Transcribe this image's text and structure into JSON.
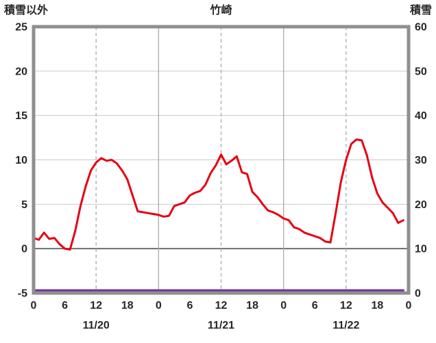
{
  "header": {
    "left_axis_title": "積雪以外",
    "station_title": "竹崎",
    "right_axis_title": "積雪"
  },
  "colors": {
    "temperature_line": "#e60012",
    "snow_line": "#7030a0",
    "frame": "#8f8f8f",
    "grid_light": "#c9c9c9",
    "grid_day": "#ababab",
    "zero_line": "#6e6e6e",
    "ink": "#262626"
  },
  "chart_data": {
    "type": "line",
    "title": "竹崎",
    "left_axis": {
      "label": "積雪以外",
      "min": -5,
      "max": 25,
      "ticks": [
        25,
        20,
        15,
        10,
        5,
        0,
        -5
      ]
    },
    "right_axis": {
      "label": "積雪",
      "min": 0,
      "max": 60,
      "ticks": [
        60,
        50,
        40,
        30,
        20,
        10,
        0
      ]
    },
    "x_axis": {
      "hours_span": 72,
      "tick_interval": 6,
      "tick_labels": [
        "0",
        "6",
        "12",
        "18",
        "0",
        "6",
        "12",
        "18",
        "0",
        "6",
        "12",
        "18",
        "0"
      ],
      "date_labels": [
        "11/20",
        "11/21",
        "11/22"
      ]
    },
    "grid": {
      "horizontal_every": 5,
      "vertical_solid_at_midnight": true,
      "vertical_dashed_at_noon": true
    },
    "legend_position": "none",
    "series": [
      {
        "name": "積雪以外",
        "axis": "left",
        "color": "#e60012",
        "values": [
          1.2,
          1.0,
          1.8,
          1.1,
          1.2,
          0.5,
          0.0,
          -0.1,
          2.0,
          4.8,
          7.0,
          8.8,
          9.7,
          10.2,
          9.9,
          10.0,
          9.6,
          8.8,
          7.8,
          6.0,
          4.2,
          4.1,
          4.0,
          3.9,
          3.8,
          3.6,
          3.7,
          4.8,
          5.0,
          5.2,
          6.0,
          6.3,
          6.5,
          7.2,
          8.5,
          9.4,
          10.6,
          9.5,
          9.9,
          10.4,
          8.6,
          8.4,
          6.4,
          5.8,
          5.0,
          4.3,
          4.1,
          3.8,
          3.4,
          3.2,
          2.4,
          2.2,
          1.8,
          1.6,
          1.4,
          1.2,
          0.8,
          0.7,
          4.0,
          7.5,
          10.0,
          11.8,
          12.3,
          12.2,
          10.5,
          8.0,
          6.2,
          5.2,
          4.6,
          4.0,
          2.9,
          3.2
        ]
      },
      {
        "name": "積雪",
        "axis": "right",
        "color": "#7030a0",
        "values": [
          0,
          0,
          0,
          0,
          0,
          0,
          0,
          0,
          0,
          0,
          0,
          0,
          0,
          0,
          0,
          0,
          0,
          0,
          0,
          0,
          0,
          0,
          0,
          0,
          0,
          0,
          0,
          0,
          0,
          0,
          0,
          0,
          0,
          0,
          0,
          0,
          0,
          0,
          0,
          0,
          0,
          0,
          0,
          0,
          0,
          0,
          0,
          0,
          0,
          0,
          0,
          0,
          0,
          0,
          0,
          0,
          0,
          0,
          0,
          0,
          0,
          0,
          0,
          0,
          0,
          0,
          0,
          0,
          0,
          0,
          0,
          0
        ]
      }
    ]
  }
}
